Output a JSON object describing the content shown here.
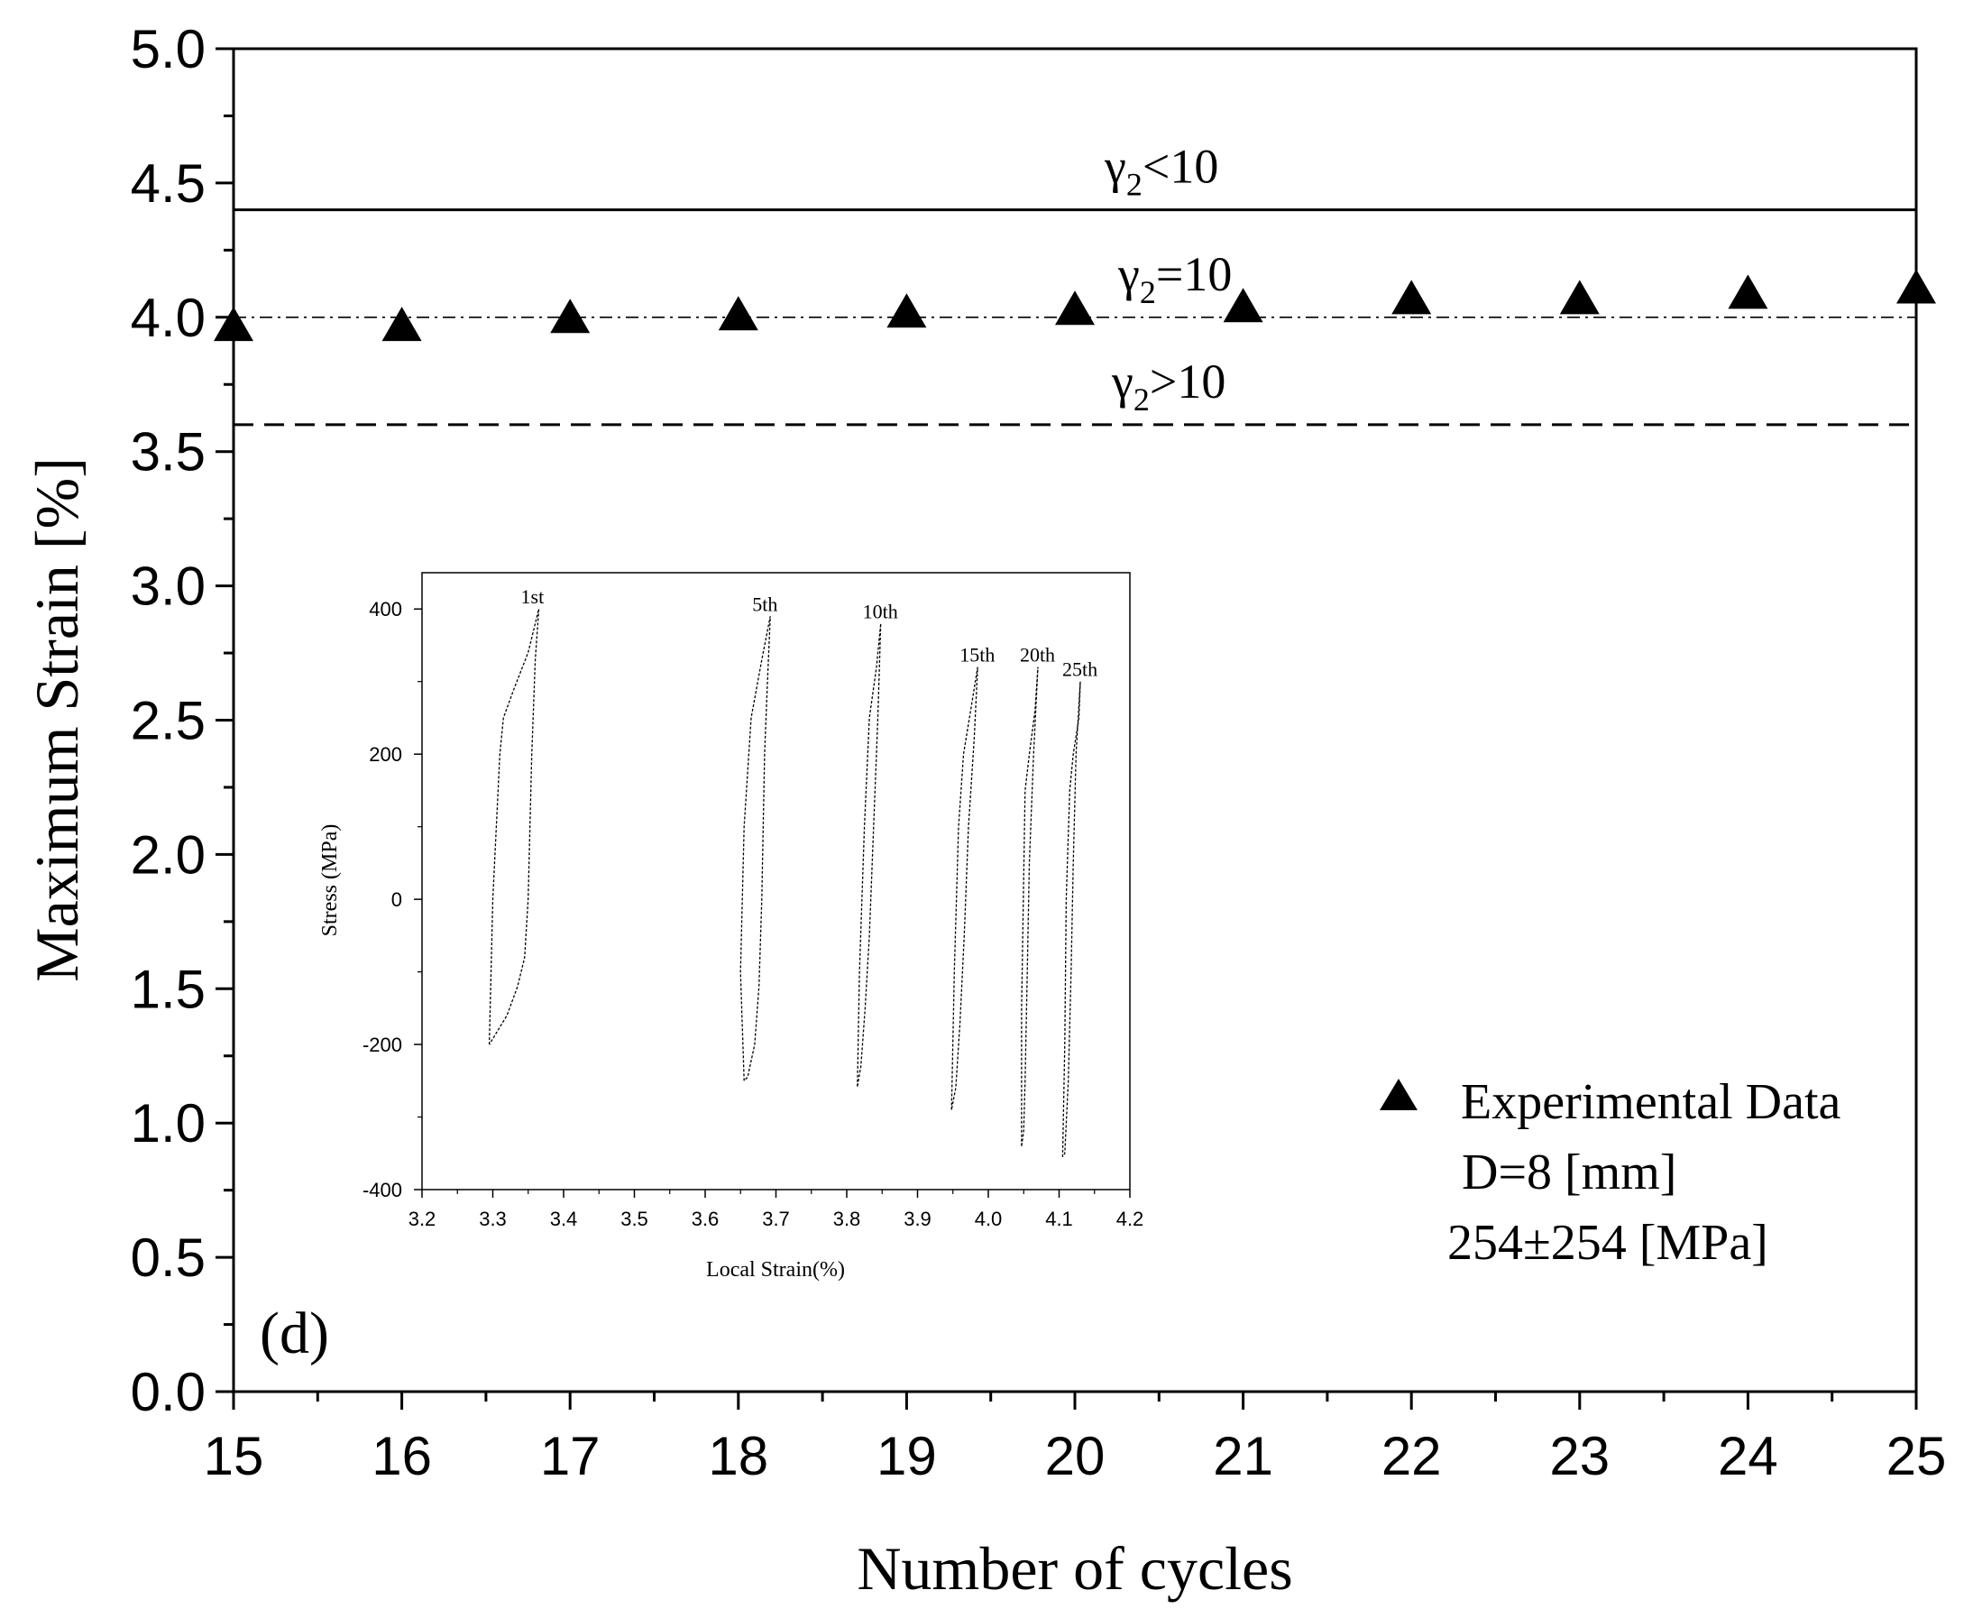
{
  "panel_label": "(d)",
  "chart_data": [
    {
      "type": "scatter",
      "role": "main",
      "xlabel": "Number of cycles",
      "ylabel": "Maximum Strain [%]",
      "xlim": [
        15,
        25
      ],
      "ylim": [
        0.0,
        5.0
      ],
      "x_ticks": [
        "15",
        "16",
        "17",
        "18",
        "19",
        "20",
        "21",
        "22",
        "23",
        "24",
        "25"
      ],
      "y_ticks": [
        "0.0",
        "0.5",
        "1.0",
        "1.5",
        "2.0",
        "2.5",
        "3.0",
        "3.5",
        "4.0",
        "4.5",
        "5.0"
      ],
      "series": [
        {
          "name": "Experimental Data",
          "marker": "triangle",
          "color": "#000000",
          "x": [
            15,
            16,
            17,
            18,
            19,
            20,
            21,
            22,
            23,
            24,
            25
          ],
          "y": [
            3.96,
            3.96,
            3.99,
            4.0,
            4.01,
            4.02,
            4.03,
            4.06,
            4.06,
            4.08,
            4.1
          ]
        }
      ],
      "reference_lines": [
        {
          "label_base": "γ",
          "label_sub": "2",
          "label_rel": "<10",
          "y": 4.4,
          "style": "solid"
        },
        {
          "label_base": "γ",
          "label_sub": "2",
          "label_rel": "=10",
          "y": 4.0,
          "style": "dashdot"
        },
        {
          "label_base": "γ",
          "label_sub": "2",
          "label_rel": ">10",
          "y": 3.6,
          "style": "dashed"
        }
      ],
      "legend": {
        "position": "bottom-right",
        "entry": "Experimental Data",
        "lines": [
          "D=8 [mm]",
          "254±254 [MPa]"
        ]
      }
    },
    {
      "type": "line",
      "role": "inset",
      "xlabel": "Local Strain(%)",
      "ylabel": "Stress (MPa)",
      "xlim": [
        3.2,
        4.2
      ],
      "ylim": [
        -400,
        450
      ],
      "x_ticks": [
        "3.2",
        "3.3",
        "3.4",
        "3.5",
        "3.6",
        "3.7",
        "3.8",
        "3.9",
        "4.0",
        "4.1",
        "4.2"
      ],
      "y_ticks": [
        "-400",
        "-200",
        "0",
        "200",
        "400"
      ],
      "series": [
        {
          "name": "1st",
          "x": [
            3.295,
            3.3,
            3.31,
            3.315,
            3.33,
            3.35,
            3.365,
            3.36,
            3.355,
            3.35,
            3.345,
            3.335,
            3.32,
            3.295
          ],
          "y": [
            -200,
            0,
            200,
            250,
            290,
            340,
            400,
            330,
            200,
            0,
            -80,
            -120,
            -160,
            -200
          ]
        },
        {
          "name": "5th",
          "x": [
            3.655,
            3.65,
            3.655,
            3.665,
            3.68,
            3.692,
            3.688,
            3.684,
            3.68,
            3.676,
            3.67,
            3.66,
            3.655
          ],
          "y": [
            -250,
            -100,
            100,
            250,
            330,
            390,
            300,
            200,
            0,
            -120,
            -200,
            -245,
            -250
          ]
        },
        {
          "name": "10th",
          "x": [
            3.815,
            3.818,
            3.825,
            3.832,
            3.842,
            3.848,
            3.844,
            3.838,
            3.832,
            3.826,
            3.82,
            3.815
          ],
          "y": [
            -258,
            -100,
            100,
            250,
            320,
            380,
            250,
            100,
            -50,
            -150,
            -230,
            -258
          ]
        },
        {
          "name": "15th",
          "x": [
            3.948,
            3.952,
            3.958,
            3.965,
            3.975,
            3.985,
            3.98,
            3.972,
            3.966,
            3.96,
            3.954,
            3.948
          ],
          "y": [
            -290,
            -100,
            100,
            200,
            260,
            320,
            220,
            100,
            -50,
            -170,
            -260,
            -290
          ]
        },
        {
          "name": "20th",
          "x": [
            4.047,
            4.047,
            4.052,
            4.058,
            4.066,
            4.07,
            4.064,
            4.058,
            4.055,
            4.052,
            4.05,
            4.047
          ],
          "y": [
            -340,
            -150,
            150,
            200,
            260,
            320,
            200,
            50,
            -100,
            -250,
            -320,
            -340
          ]
        },
        {
          "name": "25th",
          "x": [
            4.105,
            4.108,
            4.11,
            4.115,
            4.12,
            4.128,
            4.13,
            4.124,
            4.12,
            4.117,
            4.113,
            4.108,
            4.105
          ],
          "y": [
            -355,
            -200,
            0,
            150,
            200,
            250,
            300,
            200,
            50,
            -100,
            -250,
            -350,
            -355
          ]
        }
      ]
    }
  ]
}
